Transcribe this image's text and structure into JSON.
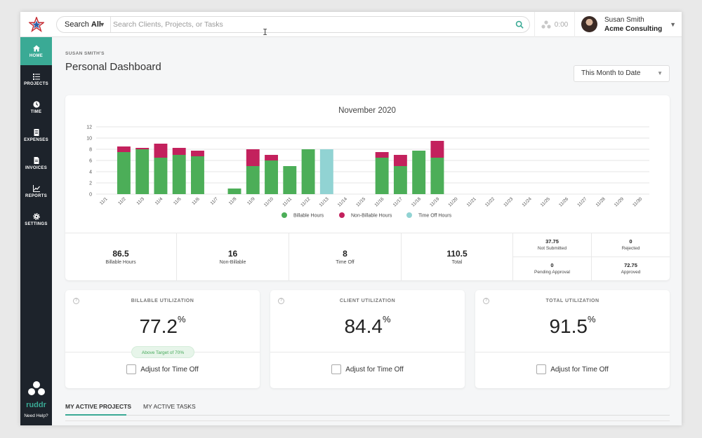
{
  "colors": {
    "accent": "#3aaa95",
    "billable": "#4cae58",
    "non_billable": "#c3215d",
    "time_off": "#91d3d3",
    "sidebar": "#1d232b"
  },
  "search": {
    "scope_prefix": "Search ",
    "scope": "All",
    "placeholder": "Search Clients, Projects, or Tasks",
    "icon": "search-icon"
  },
  "timer": {
    "value": "0:00",
    "icon": "timer-icon"
  },
  "user": {
    "name": "Susan Smith",
    "org": "Acme Consulting"
  },
  "sidebar": {
    "items": [
      {
        "label": "HOME",
        "icon": "home-icon"
      },
      {
        "label": "PROJECTS",
        "icon": "projects-icon"
      },
      {
        "label": "TIME",
        "icon": "clock-icon"
      },
      {
        "label": "EXPENSES",
        "icon": "receipt-icon"
      },
      {
        "label": "INVOICES",
        "icon": "invoice-icon"
      },
      {
        "label": "REPORTS",
        "icon": "chart-icon"
      },
      {
        "label": "SETTINGS",
        "icon": "gear-icon"
      }
    ],
    "brand": "ruddr",
    "help": "Need Help?"
  },
  "header": {
    "owner": "SUSAN SMITH'S",
    "title": "Personal Dashboard",
    "range": "This Month to Date"
  },
  "chart_data": {
    "type": "bar",
    "stacked": true,
    "title": "November 2020",
    "categories": [
      "11/1",
      "11/2",
      "11/3",
      "11/4",
      "11/5",
      "11/6",
      "11/7",
      "11/8",
      "11/9",
      "11/10",
      "11/11",
      "11/12",
      "11/13",
      "11/14",
      "11/15",
      "11/16",
      "11/17",
      "11/18",
      "11/19",
      "11/20",
      "11/21",
      "11/22",
      "11/23",
      "11/24",
      "11/25",
      "11/26",
      "11/27",
      "11/28",
      "11/29",
      "11/30"
    ],
    "series": [
      {
        "name": "Billable Hours",
        "color": "#4cae58",
        "values": [
          0,
          7.5,
          8,
          6.5,
          7,
          6.75,
          0,
          1,
          5,
          6,
          5,
          8,
          0,
          0,
          0,
          6.5,
          5,
          7.75,
          6.5,
          0,
          0,
          0,
          0,
          0,
          0,
          0,
          0,
          0,
          0,
          0
        ]
      },
      {
        "name": "Non-Billable Hours",
        "color": "#c3215d",
        "values": [
          0,
          1,
          0.25,
          2.5,
          1.25,
          1,
          0,
          0,
          3,
          1,
          0,
          0,
          0,
          0,
          0,
          1,
          2,
          0,
          3,
          0,
          0,
          0,
          0,
          0,
          0,
          0,
          0,
          0,
          0,
          0
        ]
      },
      {
        "name": "Time Off Hours",
        "color": "#91d3d3",
        "values": [
          0,
          0,
          0,
          0,
          0,
          0,
          0,
          0,
          0,
          0,
          0,
          0,
          8,
          0,
          0,
          0,
          0,
          0,
          0,
          0,
          0,
          0,
          0,
          0,
          0,
          0,
          0,
          0,
          0,
          0
        ]
      }
    ],
    "y_ticks": [
      0,
      2,
      4,
      6,
      8,
      10,
      12
    ],
    "ylim": [
      0,
      12
    ],
    "grid": true,
    "legend_position": "bottom"
  },
  "stats": {
    "billable": {
      "value": "86.5",
      "label": "Billable Hours"
    },
    "non_billable": {
      "value": "16",
      "label": "Non-Billable"
    },
    "time_off": {
      "value": "8",
      "label": "Time Off"
    },
    "total": {
      "value": "110.5",
      "label": "Total"
    },
    "not_submitted": {
      "value": "37.75",
      "label": "Not Submitted"
    },
    "rejected": {
      "value": "0",
      "label": "Rejected"
    },
    "pending": {
      "value": "0",
      "label": "Pending Approval"
    },
    "approved": {
      "value": "72.75",
      "label": "Approved"
    }
  },
  "utilization": [
    {
      "title": "BILLABLE UTILIZATION",
      "value": "77.2",
      "unit": "%",
      "badge": "Above Target of 70%",
      "adjust": "Adjust for Time Off"
    },
    {
      "title": "CLIENT UTILIZATION",
      "value": "84.4",
      "unit": "%",
      "adjust": "Adjust for Time Off"
    },
    {
      "title": "TOTAL UTILIZATION",
      "value": "91.5",
      "unit": "%",
      "adjust": "Adjust for Time Off"
    }
  ],
  "tabs": [
    {
      "label": "MY ACTIVE PROJECTS",
      "active": true
    },
    {
      "label": "MY ACTIVE TASKS",
      "active": false
    }
  ]
}
